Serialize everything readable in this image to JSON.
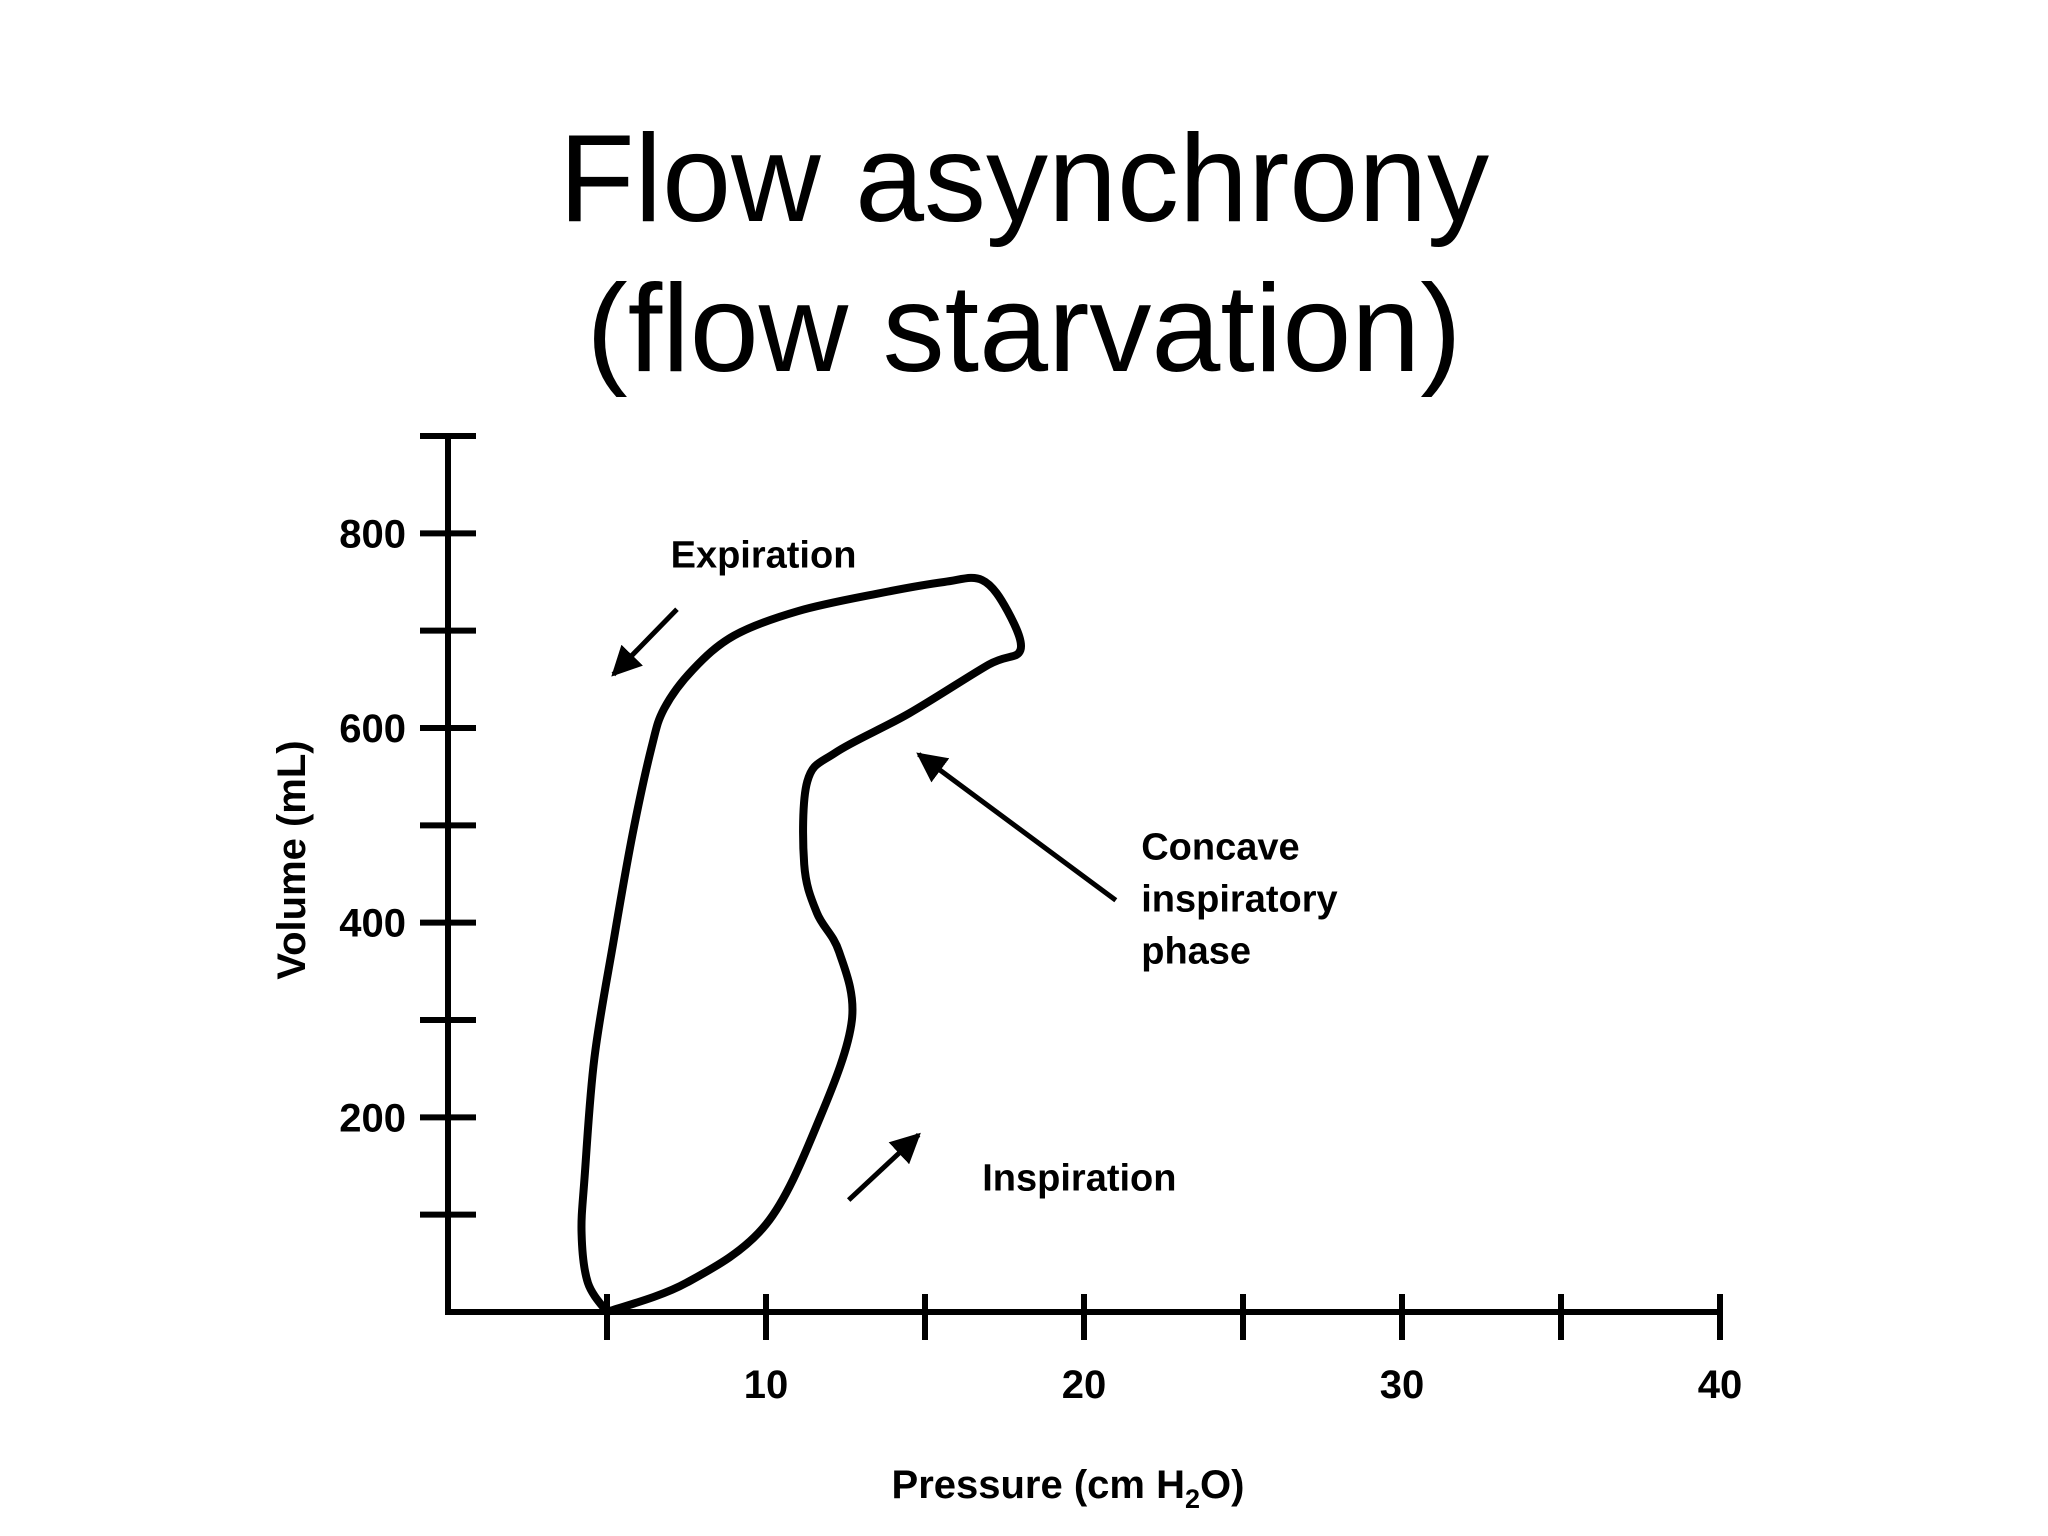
{
  "slide": {
    "title_line1": "Flow asynchrony",
    "title_line2": "(flow starvation)"
  },
  "chart_data": {
    "type": "line",
    "title": "Flow asynchrony (flow starvation)",
    "xlabel_main": "Pressure (cm H",
    "xlabel_sub": "2",
    "xlabel_end": "O)",
    "ylabel": "Volume (mL)",
    "xlim": [
      0,
      40
    ],
    "ylim": [
      0,
      900
    ],
    "x_tick_labels": [
      "10",
      "20",
      "30",
      "40"
    ],
    "x_tick_values": [
      5,
      10,
      15,
      20,
      25,
      30,
      35,
      40
    ],
    "y_tick_labels": [
      "200",
      "400",
      "600",
      "800"
    ],
    "y_tick_values": [
      100,
      200,
      300,
      400,
      500,
      600,
      700,
      800,
      900
    ],
    "series": [
      {
        "values_xy": [
          [
            5,
            0
          ],
          [
            7.5,
            30
          ],
          [
            10,
            90
          ],
          [
            11.7,
            200
          ],
          [
            12.7,
            300
          ],
          [
            12.3,
            370
          ],
          [
            11.6,
            410
          ],
          [
            11.2,
            460
          ],
          [
            11.3,
            545
          ],
          [
            12.2,
            575
          ],
          [
            14.5,
            615
          ],
          [
            17,
            665
          ],
          [
            18,
            680
          ],
          [
            17.6,
            720
          ],
          [
            16.8,
            752
          ],
          [
            15.6,
            750
          ],
          [
            13.5,
            738
          ],
          [
            11,
            720
          ],
          [
            9,
            695
          ],
          [
            7.7,
            660
          ],
          [
            6.8,
            620
          ],
          [
            6.4,
            580
          ],
          [
            5.8,
            490
          ],
          [
            5.2,
            380
          ],
          [
            4.6,
            260
          ],
          [
            4.3,
            140
          ],
          [
            4.2,
            80
          ],
          [
            4.4,
            30
          ],
          [
            5,
            0
          ]
        ]
      }
    ],
    "annotations": [
      {
        "text": "Expiration",
        "x": 7,
        "y": 765
      },
      {
        "text": "Inspiration",
        "x": 16.8,
        "y": 125
      },
      {
        "lines": [
          "Concave",
          "inspiratory",
          "phase"
        ],
        "x": 21.8,
        "y": 465
      }
    ],
    "annotation_arrows": [
      {
        "label": "Expiration",
        "from": [
          7.2,
          722
        ],
        "to": [
          5.2,
          655
        ]
      },
      {
        "label": "Inspiration",
        "from": [
          12.6,
          115
        ],
        "to": [
          14.8,
          182
        ]
      },
      {
        "label": "Concave inspiratory phase",
        "from": [
          21,
          423
        ],
        "to": [
          14.8,
          573
        ]
      }
    ],
    "grid": false,
    "legend": "none"
  }
}
